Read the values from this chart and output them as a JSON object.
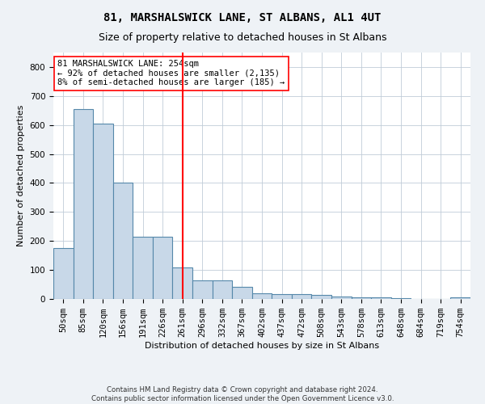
{
  "title": "81, MARSHALSWICK LANE, ST ALBANS, AL1 4UT",
  "subtitle": "Size of property relative to detached houses in St Albans",
  "xlabel": "Distribution of detached houses by size in St Albans",
  "ylabel": "Number of detached properties",
  "footer_line1": "Contains HM Land Registry data © Crown copyright and database right 2024.",
  "footer_line2": "Contains public sector information licensed under the Open Government Licence v3.0.",
  "bins": [
    "50sqm",
    "85sqm",
    "120sqm",
    "156sqm",
    "191sqm",
    "226sqm",
    "261sqm",
    "296sqm",
    "332sqm",
    "367sqm",
    "402sqm",
    "437sqm",
    "472sqm",
    "508sqm",
    "543sqm",
    "578sqm",
    "613sqm",
    "648sqm",
    "684sqm",
    "719sqm",
    "754sqm"
  ],
  "values": [
    175,
    655,
    605,
    400,
    215,
    215,
    108,
    65,
    65,
    42,
    20,
    18,
    18,
    13,
    8,
    5,
    5,
    3,
    1,
    0,
    6
  ],
  "bar_color": "#c8d8e8",
  "bar_edge_color": "#5588aa",
  "vline_x_index": 6,
  "vline_color": "red",
  "annotation_line1": "81 MARSHALSWICK LANE: 254sqm",
  "annotation_line2": "← 92% of detached houses are smaller (2,135)",
  "annotation_line3": "8% of semi-detached houses are larger (185) →",
  "annotation_box_color": "white",
  "annotation_box_edge": "red",
  "ylim": [
    0,
    850
  ],
  "yticks": [
    0,
    100,
    200,
    300,
    400,
    500,
    600,
    700,
    800
  ],
  "background_color": "#eef2f6",
  "plot_bg_color": "white",
  "title_fontsize": 10,
  "subtitle_fontsize": 9,
  "label_fontsize": 8,
  "tick_fontsize": 7.5,
  "annotation_fontsize": 7.5
}
